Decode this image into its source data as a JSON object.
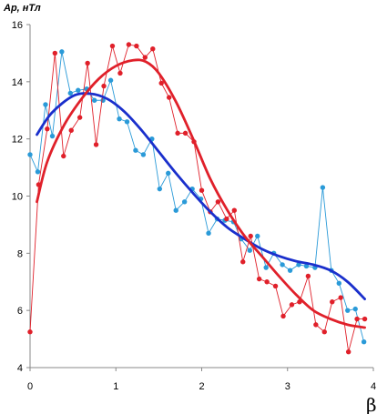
{
  "chart_data": {
    "type": "line",
    "ylabel": "Ap, нТл",
    "xlabel": "β",
    "xlim": [
      0,
      4
    ],
    "ylim": [
      4,
      16
    ],
    "x_ticks": [
      "0",
      "1",
      "2",
      "3",
      "4"
    ],
    "y_ticks": [
      "4",
      "6",
      "8",
      "10",
      "12",
      "14",
      "16"
    ],
    "grid": false,
    "colors": {
      "blue_data": "#2a9ad8",
      "blue_trend": "#1a2fcc",
      "red_data": "#e0202a",
      "red_trend": "#e0202a"
    },
    "series": [
      {
        "key": "blue_data",
        "kind": "markers-line",
        "points": [
          [
            0.0,
            11.45
          ],
          [
            0.09,
            10.85
          ],
          [
            0.18,
            13.2
          ],
          [
            0.26,
            12.1
          ],
          [
            0.37,
            15.05
          ],
          [
            0.47,
            13.6
          ],
          [
            0.56,
            13.7
          ],
          [
            0.66,
            13.75
          ],
          [
            0.75,
            13.35
          ],
          [
            0.85,
            13.35
          ],
          [
            0.94,
            14.05
          ],
          [
            1.04,
            12.7
          ],
          [
            1.13,
            12.6
          ],
          [
            1.23,
            11.6
          ],
          [
            1.32,
            11.45
          ],
          [
            1.42,
            12.0
          ],
          [
            1.51,
            10.25
          ],
          [
            1.61,
            10.8
          ],
          [
            1.7,
            9.5
          ],
          [
            1.8,
            9.8
          ],
          [
            1.89,
            10.25
          ],
          [
            1.99,
            9.9
          ],
          [
            2.08,
            8.7
          ],
          [
            2.18,
            9.2
          ],
          [
            2.27,
            9.15
          ],
          [
            2.37,
            9.1
          ],
          [
            2.46,
            8.5
          ],
          [
            2.56,
            8.1
          ],
          [
            2.65,
            8.6
          ],
          [
            2.75,
            7.5
          ],
          [
            2.84,
            8.0
          ],
          [
            2.94,
            7.6
          ],
          [
            3.03,
            7.4
          ],
          [
            3.13,
            7.6
          ],
          [
            3.22,
            7.55
          ],
          [
            3.32,
            7.5
          ],
          [
            3.41,
            10.3
          ],
          [
            3.51,
            7.4
          ],
          [
            3.6,
            6.95
          ],
          [
            3.7,
            6.0
          ],
          [
            3.79,
            6.05
          ],
          [
            3.89,
            4.9
          ]
        ]
      },
      {
        "key": "red_data",
        "kind": "markers-line",
        "points": [
          [
            0.0,
            5.25
          ],
          [
            0.1,
            10.4
          ],
          [
            0.2,
            12.35
          ],
          [
            0.29,
            15.0
          ],
          [
            0.39,
            11.4
          ],
          [
            0.48,
            12.3
          ],
          [
            0.58,
            12.75
          ],
          [
            0.67,
            14.65
          ],
          [
            0.77,
            11.8
          ],
          [
            0.86,
            13.85
          ],
          [
            0.96,
            15.25
          ],
          [
            1.05,
            14.3
          ],
          [
            1.15,
            15.3
          ],
          [
            1.24,
            15.25
          ],
          [
            1.34,
            14.85
          ],
          [
            1.43,
            15.15
          ],
          [
            1.53,
            13.95
          ],
          [
            1.62,
            13.45
          ],
          [
            1.72,
            12.2
          ],
          [
            1.81,
            12.2
          ],
          [
            1.91,
            11.9
          ],
          [
            2.0,
            10.2
          ],
          [
            2.1,
            9.45
          ],
          [
            2.19,
            9.8
          ],
          [
            2.29,
            9.2
          ],
          [
            2.38,
            9.5
          ],
          [
            2.48,
            7.7
          ],
          [
            2.57,
            8.6
          ],
          [
            2.67,
            7.1
          ],
          [
            2.76,
            7.0
          ],
          [
            2.86,
            6.85
          ],
          [
            2.95,
            5.8
          ],
          [
            3.05,
            6.2
          ],
          [
            3.14,
            6.3
          ],
          [
            3.24,
            7.2
          ],
          [
            3.33,
            5.5
          ],
          [
            3.43,
            5.25
          ],
          [
            3.52,
            6.3
          ],
          [
            3.62,
            6.45
          ],
          [
            3.71,
            4.55
          ],
          [
            3.81,
            5.7
          ],
          [
            3.9,
            5.7
          ]
        ]
      },
      {
        "key": "blue_trend",
        "kind": "smooth-line",
        "points": [
          [
            0.08,
            12.15
          ],
          [
            0.25,
            12.9
          ],
          [
            0.5,
            13.5
          ],
          [
            0.7,
            13.58
          ],
          [
            0.9,
            13.4
          ],
          [
            1.1,
            12.95
          ],
          [
            1.3,
            12.3
          ],
          [
            1.5,
            11.55
          ],
          [
            1.7,
            10.8
          ],
          [
            1.9,
            10.1
          ],
          [
            2.1,
            9.45
          ],
          [
            2.3,
            8.9
          ],
          [
            2.5,
            8.5
          ],
          [
            2.7,
            8.15
          ],
          [
            2.9,
            7.9
          ],
          [
            3.1,
            7.72
          ],
          [
            3.3,
            7.6
          ],
          [
            3.5,
            7.4
          ],
          [
            3.7,
            7.0
          ],
          [
            3.9,
            6.4
          ]
        ]
      },
      {
        "key": "red_trend",
        "kind": "smooth-line",
        "points": [
          [
            0.08,
            9.8
          ],
          [
            0.2,
            11.2
          ],
          [
            0.4,
            12.5
          ],
          [
            0.6,
            13.4
          ],
          [
            0.8,
            14.1
          ],
          [
            1.0,
            14.55
          ],
          [
            1.2,
            14.75
          ],
          [
            1.35,
            14.7
          ],
          [
            1.5,
            14.3
          ],
          [
            1.7,
            13.3
          ],
          [
            1.9,
            12.0
          ],
          [
            2.1,
            10.6
          ],
          [
            2.3,
            9.5
          ],
          [
            2.5,
            8.6
          ],
          [
            2.7,
            7.9
          ],
          [
            2.9,
            7.2
          ],
          [
            3.1,
            6.55
          ],
          [
            3.3,
            6.0
          ],
          [
            3.5,
            5.7
          ],
          [
            3.7,
            5.5
          ],
          [
            3.9,
            5.4
          ]
        ]
      }
    ]
  }
}
